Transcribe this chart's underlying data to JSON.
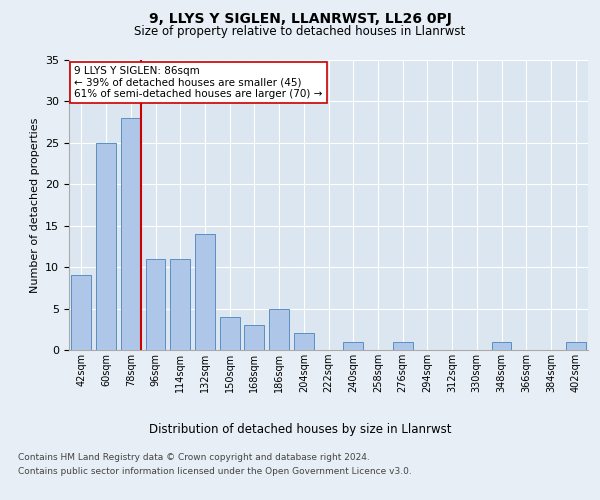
{
  "title1": "9, LLYS Y SIGLEN, LLANRWST, LL26 0PJ",
  "title2": "Size of property relative to detached houses in Llanrwst",
  "xlabel": "Distribution of detached houses by size in Llanrwst",
  "ylabel": "Number of detached properties",
  "categories": [
    "42sqm",
    "60sqm",
    "78sqm",
    "96sqm",
    "114sqm",
    "132sqm",
    "150sqm",
    "168sqm",
    "186sqm",
    "204sqm",
    "222sqm",
    "240sqm",
    "258sqm",
    "276sqm",
    "294sqm",
    "312sqm",
    "330sqm",
    "348sqm",
    "366sqm",
    "384sqm",
    "402sqm"
  ],
  "values": [
    9,
    25,
    28,
    11,
    11,
    14,
    4,
    3,
    5,
    2,
    0,
    1,
    0,
    1,
    0,
    0,
    0,
    1,
    0,
    0,
    1
  ],
  "bar_color": "#aec6e8",
  "bar_edge_color": "#5a8fc3",
  "subject_line_color": "#cc0000",
  "annotation_text": "9 LLYS Y SIGLEN: 86sqm\n← 39% of detached houses are smaller (45)\n61% of semi-detached houses are larger (70) →",
  "annotation_box_color": "#ffffff",
  "annotation_box_edge": "#cc0000",
  "ylim": [
    0,
    35
  ],
  "yticks": [
    0,
    5,
    10,
    15,
    20,
    25,
    30,
    35
  ],
  "footer1": "Contains HM Land Registry data © Crown copyright and database right 2024.",
  "footer2": "Contains public sector information licensed under the Open Government Licence v3.0.",
  "background_color": "#e8eef5",
  "plot_bg_color": "#dce6f0"
}
